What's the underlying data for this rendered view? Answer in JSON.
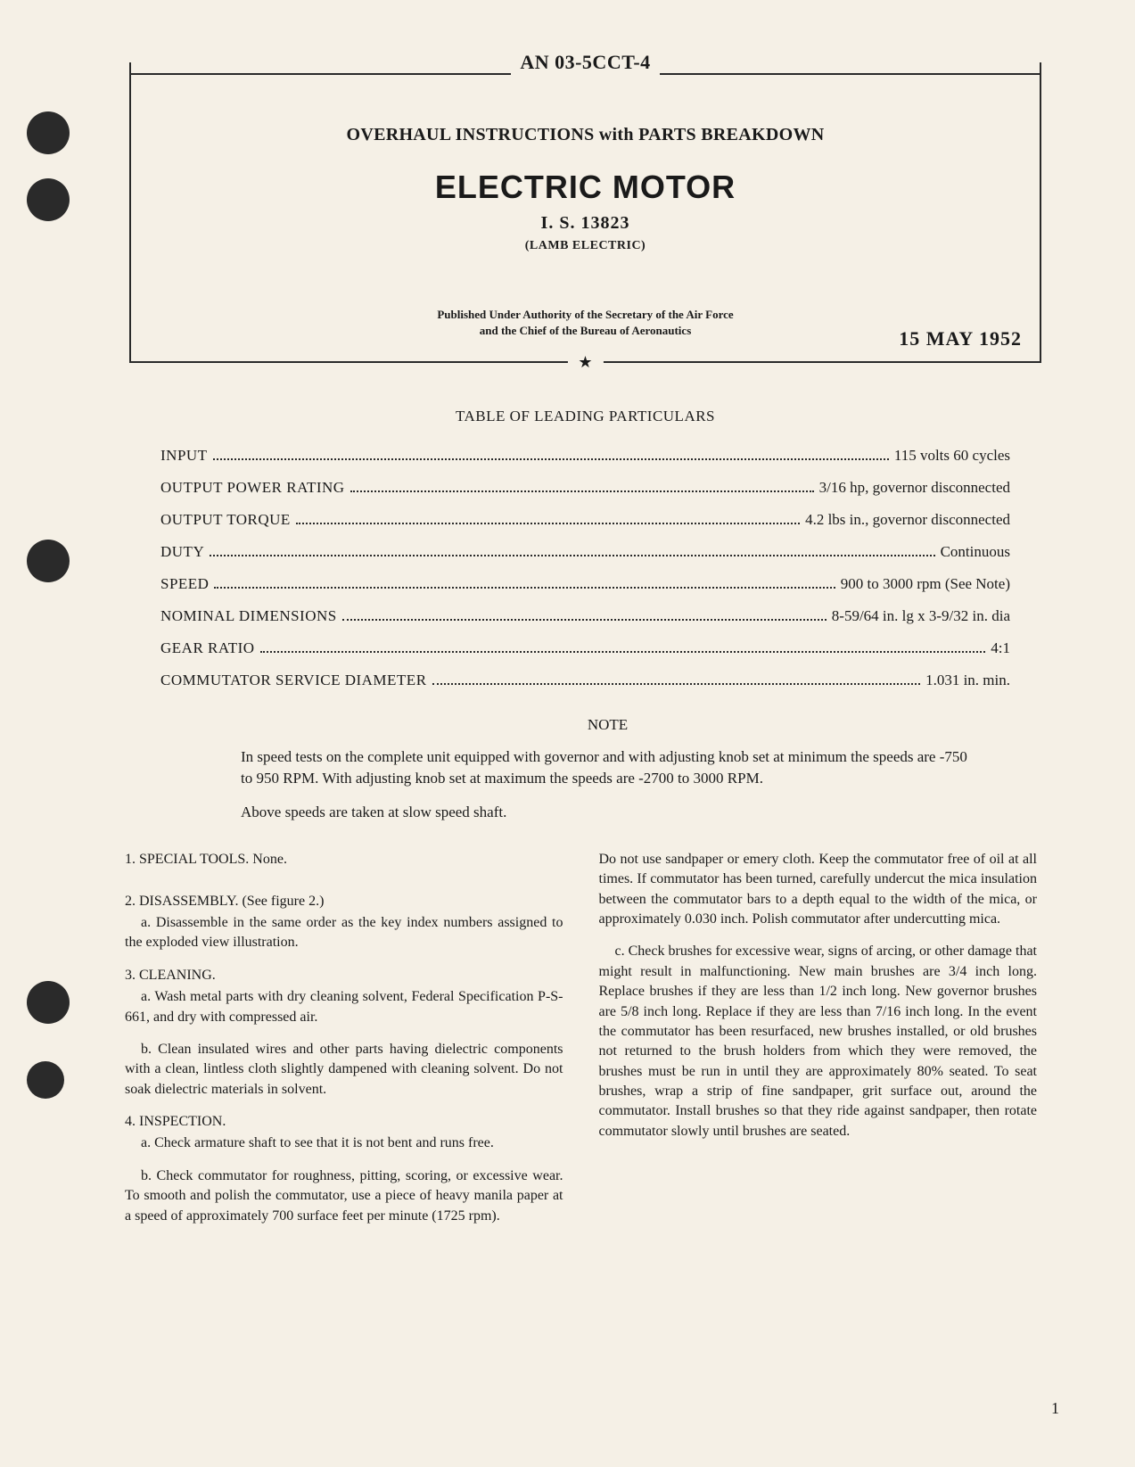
{
  "header": {
    "doc_number": "AN 03-5CCT-4",
    "doc_type": "OVERHAUL INSTRUCTIONS with PARTS BREAKDOWN",
    "title": "ELECTRIC MOTOR",
    "subtitle": "I. S. 13823",
    "manufacturer": "(LAMB ELECTRIC)",
    "authority_line1": "Published Under Authority of the Secretary of the Air Force",
    "authority_line2": "and the Chief of the Bureau of Aeronautics",
    "date": "15 MAY 1952",
    "star": "★"
  },
  "particulars": {
    "title": "TABLE OF LEADING PARTICULARS",
    "rows": [
      {
        "label": "INPUT",
        "value": "115 volts 60 cycles"
      },
      {
        "label": "OUTPUT POWER RATING",
        "value": "3/16 hp, governor disconnected"
      },
      {
        "label": "OUTPUT TORQUE",
        "value": "4.2 lbs in., governor disconnected"
      },
      {
        "label": "DUTY",
        "value": "Continuous"
      },
      {
        "label": "SPEED",
        "value": "900 to 3000 rpm (See Note)"
      },
      {
        "label": "NOMINAL DIMENSIONS",
        "value": "8-59/64 in. lg x 3-9/32 in. dia"
      },
      {
        "label": "GEAR RATIO",
        "value": "4:1"
      },
      {
        "label": "COMMUTATOR SERVICE DIAMETER",
        "value": "1.031 in. min."
      }
    ]
  },
  "note": {
    "title": "NOTE",
    "para1": "In speed tests on the complete unit equipped with governor and with adjusting knob set at minimum the speeds are -750 to 950 RPM. With adjusting knob set at maximum the speeds are -2700 to 3000 RPM.",
    "para2": "Above speeds are taken at slow speed shaft."
  },
  "body": {
    "left": {
      "s1": "1. SPECIAL TOOLS. None.",
      "s2": "2. DISASSEMBLY. (See figure 2.)",
      "s2a": "a. Disassemble in the same order as the key index numbers assigned to the exploded view illustration.",
      "s3": "3. CLEANING.",
      "s3a": "a. Wash metal parts with dry cleaning solvent, Federal Specification P-S-661, and dry with compressed air.",
      "s3b": "b. Clean insulated wires and other parts having dielectric components with a clean, lintless cloth slightly dampened with cleaning solvent. Do not soak dielectric materials in solvent.",
      "s4": "4. INSPECTION.",
      "s4a": "a. Check armature shaft to see that it is not bent and runs free.",
      "s4b": "b. Check commutator for roughness, pitting, scoring, or excessive wear. To smooth and polish the commutator, use a piece of heavy manila paper at a speed of approximately 700 surface feet per minute (1725 rpm)."
    },
    "right": {
      "p1": "Do not use sandpaper or emery cloth. Keep the commutator free of oil at all times. If commutator has been turned, carefully undercut the mica insulation between the commutator bars to a depth equal to the width of the mica, or approximately 0.030 inch. Polish commutator after undercutting mica.",
      "p2": "c. Check brushes for excessive wear, signs of arcing, or other damage that might result in malfunctioning. New main brushes are 3/4 inch long. Replace brushes if they are less than 1/2 inch long. New governor brushes are 5/8 inch long. Replace if they are less than 7/16 inch long. In the event the commutator has been resurfaced, new brushes installed, or old brushes not returned to the brush holders from which they were removed, the brushes must be run in until they are approximately 80% seated. To seat brushes, wrap a strip of fine sandpaper, grit surface out, around the commutator. Install brushes so that they ride against sandpaper, then rotate commutator slowly until brushes are seated."
    }
  },
  "page_number": "1",
  "colors": {
    "background": "#f5f0e6",
    "text": "#1a1a1a",
    "border": "#2a2a2a",
    "punch_hole": "#2a2a2a"
  }
}
